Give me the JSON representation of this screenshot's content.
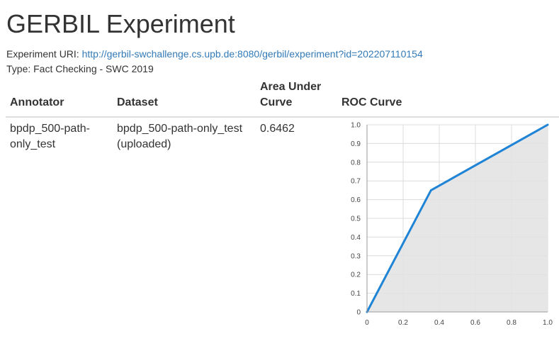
{
  "page": {
    "title": "GERBIL Experiment",
    "uri_label": "Experiment URI:",
    "uri": "http://gerbil-swchallenge.cs.upb.de:8080/gerbil/experiment?id=202207110154",
    "type_text": "Type: Fact Checking - SWC 2019"
  },
  "table": {
    "headers": [
      "Annotator",
      "Dataset",
      "Area Under Curve",
      "ROC Curve"
    ],
    "rows": [
      {
        "annotator": "bpdp_500-path-only_test",
        "dataset": "bpdp_500-path-only_test (uploaded)",
        "auc": "0.6462"
      }
    ]
  },
  "colors": {
    "line": "#1f84d6",
    "fill": "#e2e2e2",
    "grid": "#dcdcdc",
    "link": "#337ab7"
  },
  "chart_data": {
    "type": "area",
    "title": "",
    "xlabel": "",
    "ylabel": "",
    "xlim": [
      0,
      1
    ],
    "ylim": [
      0,
      1
    ],
    "x_ticks": [
      "0",
      "0.2",
      "0.4",
      "0.6",
      "0.8",
      "1.0"
    ],
    "y_ticks": [
      "0",
      "0.1",
      "0.2",
      "0.3",
      "0.4",
      "0.5",
      "0.6",
      "0.7",
      "0.8",
      "0.9",
      "1.0"
    ],
    "x_tick_values": [
      0,
      0.2,
      0.4,
      0.6,
      0.8,
      1.0
    ],
    "y_tick_values": [
      0,
      0.1,
      0.2,
      0.3,
      0.4,
      0.5,
      0.6,
      0.7,
      0.8,
      0.9,
      1.0
    ],
    "grid": true,
    "series": [
      {
        "x": [
          0,
          0.354,
          1.0
        ],
        "y": [
          0,
          0.65,
          1.0
        ]
      }
    ]
  }
}
